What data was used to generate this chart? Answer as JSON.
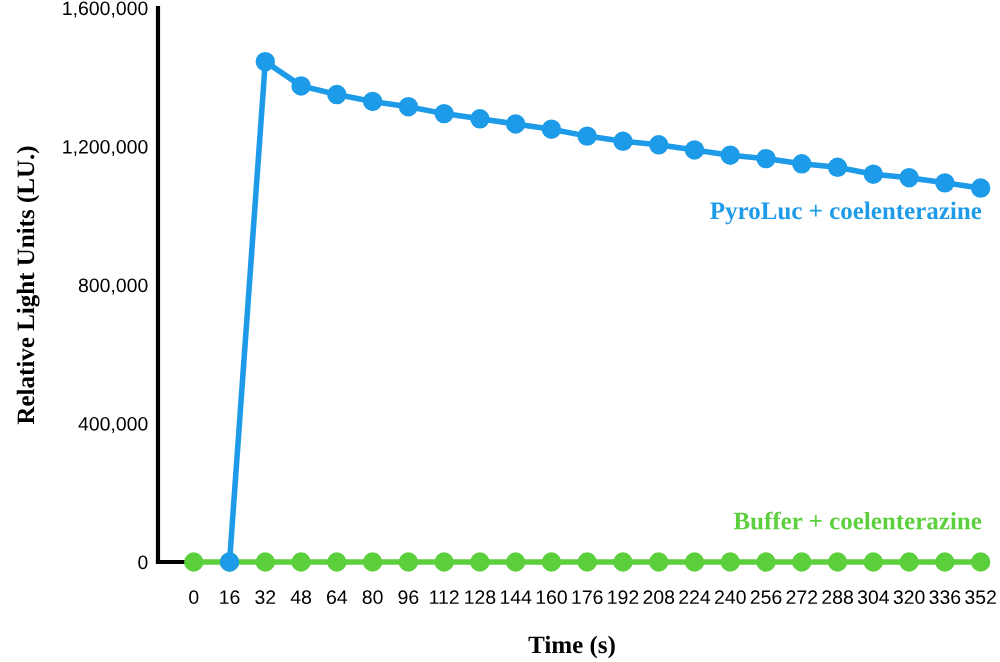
{
  "chart_data": {
    "type": "line",
    "xlabel": "Time (s)",
    "ylabel": "Relative Light Units (LU.)",
    "categories": [
      "0",
      "16",
      "32",
      "48",
      "64",
      "80",
      "96",
      "112",
      "128",
      "144",
      "160",
      "176",
      "192",
      "208",
      "224",
      "240",
      "256",
      "272",
      "288",
      "304",
      "320",
      "336",
      "352"
    ],
    "ylim": [
      0,
      1600000
    ],
    "yticks": [
      {
        "value": 0,
        "label": "0"
      },
      {
        "value": 400000,
        "label": "400,000"
      },
      {
        "value": 800000,
        "label": "800,000"
      },
      {
        "value": 1200000,
        "label": "1,200,000"
      },
      {
        "value": 1600000,
        "label": "1,600,000"
      }
    ],
    "grid": false,
    "marker": "circle",
    "line_style": "solid",
    "series": [
      {
        "name": "PyroLuc + coelenterazine",
        "color": "#1e9be8",
        "values": [
          null,
          0,
          1445000,
          1375000,
          1350000,
          1330000,
          1315000,
          1295000,
          1280000,
          1265000,
          1250000,
          1230000,
          1215000,
          1205000,
          1190000,
          1175000,
          1165000,
          1150000,
          1140000,
          1120000,
          1110000,
          1095000,
          1080000
        ]
      },
      {
        "name": "Buffer + coelenterazine",
        "color": "#5ccf3c",
        "values": [
          0,
          0,
          0,
          0,
          0,
          0,
          0,
          0,
          0,
          0,
          0,
          0,
          0,
          0,
          0,
          0,
          0,
          0,
          0,
          0,
          0,
          0,
          0
        ]
      }
    ]
  }
}
